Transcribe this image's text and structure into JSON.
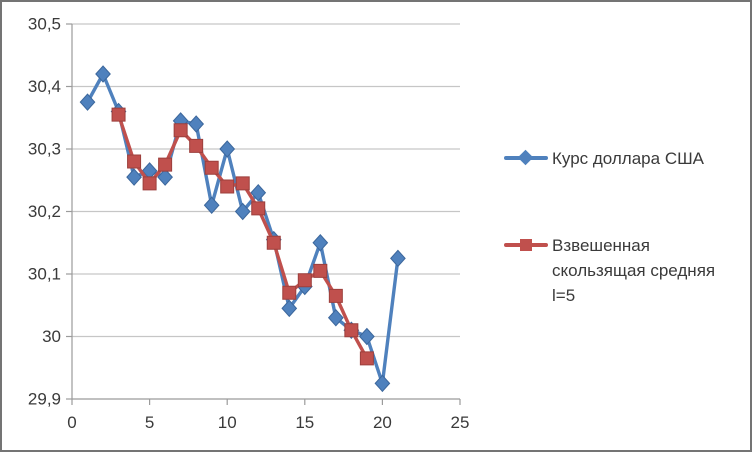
{
  "figure": {
    "background": "#ffffff",
    "border_color": "#747474",
    "text_color": "#3a3a3a",
    "axis_color": "#9b9b9b",
    "grid_color": "#c6c6c6"
  },
  "chart_data": {
    "type": "line",
    "title": "",
    "xlabel": "",
    "ylabel": "",
    "xlim": [
      0,
      25
    ],
    "ylim": [
      29.9,
      30.5
    ],
    "grid": "horizontal",
    "legend_position": "right",
    "decimal_separator": ",",
    "x_tick_values": [
      0,
      5,
      10,
      15,
      20,
      25
    ],
    "x_tick_labels": [
      "0",
      "5",
      "10",
      "15",
      "20",
      "25"
    ],
    "y_tick_values": [
      30.5,
      30.4,
      30.3,
      30.2,
      30.1,
      30.0,
      29.9
    ],
    "y_tick_labels": [
      "30,5",
      "30,4",
      "30,3",
      "30,2",
      "30,1",
      "30",
      "29,9"
    ],
    "series": [
      {
        "name": "Курс доллара США",
        "color": "#4F81BD",
        "edge_color": "#3c679c",
        "marker": "diamond",
        "x": [
          1,
          2,
          3,
          4,
          5,
          6,
          7,
          8,
          9,
          10,
          11,
          12,
          13,
          14,
          15,
          16,
          17,
          18,
          19,
          20,
          21
        ],
        "y": [
          30.375,
          30.42,
          30.36,
          30.255,
          30.265,
          30.255,
          30.345,
          30.34,
          30.21,
          30.3,
          30.2,
          30.23,
          30.155,
          30.045,
          30.08,
          30.15,
          30.03,
          30.01,
          30.0,
          29.925,
          30.125
        ]
      },
      {
        "name": "Взвешенная скользящая средняя l=5",
        "color": "#C0504D",
        "edge_color": "#9c3f3c",
        "marker": "square",
        "x": [
          3,
          4,
          5,
          6,
          7,
          8,
          9,
          10,
          11,
          12,
          13,
          14,
          15,
          16,
          17,
          18,
          19
        ],
        "y": [
          30.355,
          30.28,
          30.245,
          30.275,
          30.33,
          30.305,
          30.27,
          30.24,
          30.245,
          30.205,
          30.15,
          30.07,
          30.09,
          30.105,
          30.065,
          30.01,
          29.965
        ]
      }
    ]
  },
  "legend": {
    "entries": [
      {
        "label": "Курс доллара США",
        "lines": [
          "Курс доллара США"
        ],
        "color": "#4F81BD",
        "marker": "diamond"
      },
      {
        "label": "Взвешенная скользящая средняя l=5",
        "lines": [
          "Взвешенная",
          "скользящая средняя",
          "l=5"
        ],
        "color": "#C0504D",
        "marker": "square"
      }
    ]
  }
}
